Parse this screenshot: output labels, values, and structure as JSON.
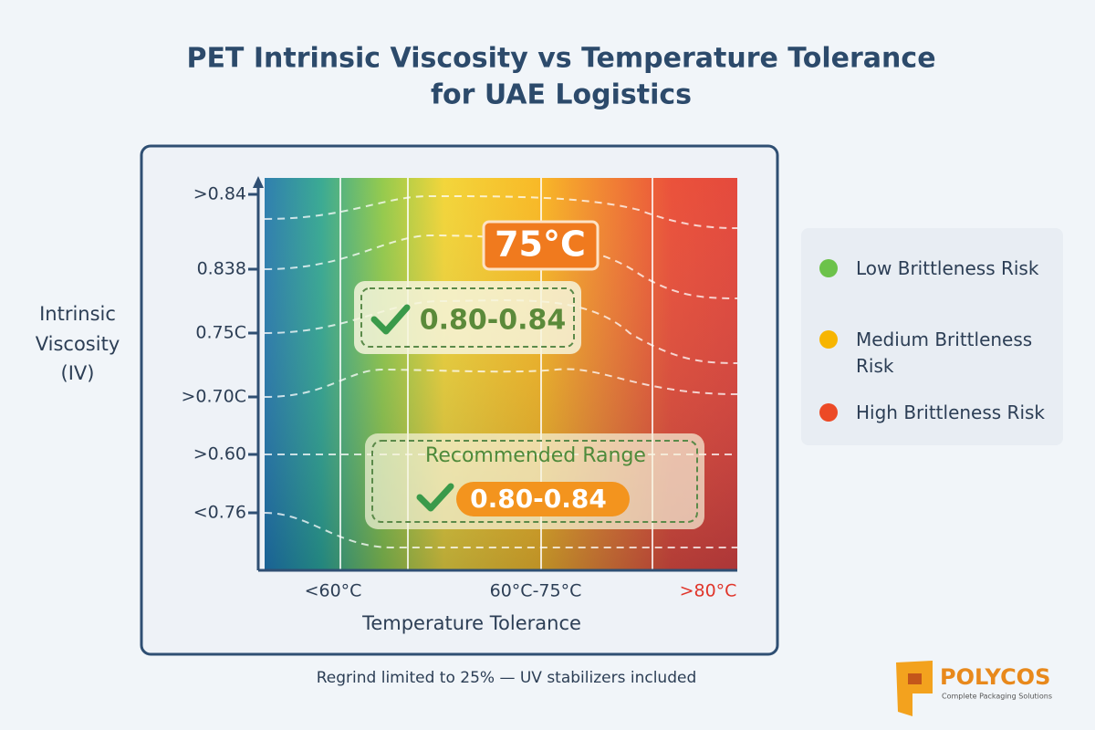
{
  "title": [
    "PET Intrinsic Viscosity vs Temperature Tolerance",
    "for UAE Logistics"
  ],
  "y_axis": {
    "title": [
      "Intrinsic",
      "Viscosity",
      "(IV)"
    ],
    "labels": [
      ">0.84",
      "0.838",
      "0.75C",
      ">0.70C",
      ">0.60",
      "<0.76"
    ]
  },
  "x_axis": {
    "title": "Temperature Tolerance",
    "labels": [
      "<60°C",
      "60°C-75°C",
      ">80°C"
    ]
  },
  "callouts": {
    "temperature": "75°C",
    "upper_range": "0.80-0.84",
    "recommended_title": "Recommended Range",
    "recommended_range": "0.80-0.84"
  },
  "legend": [
    {
      "label": "Low Brittleness Risk",
      "color": "#6cc24a"
    },
    {
      "label": "Medium Brittleness Risk",
      "color": "#f7b500"
    },
    {
      "label": "High Brittleness Risk",
      "color": "#ec4a26"
    }
  ],
  "footnote": "Regrind limited to 25% — UV stabilizers included",
  "logo": {
    "name": "POLYCOS",
    "tagline": "Complete Packaging Solutions"
  }
}
